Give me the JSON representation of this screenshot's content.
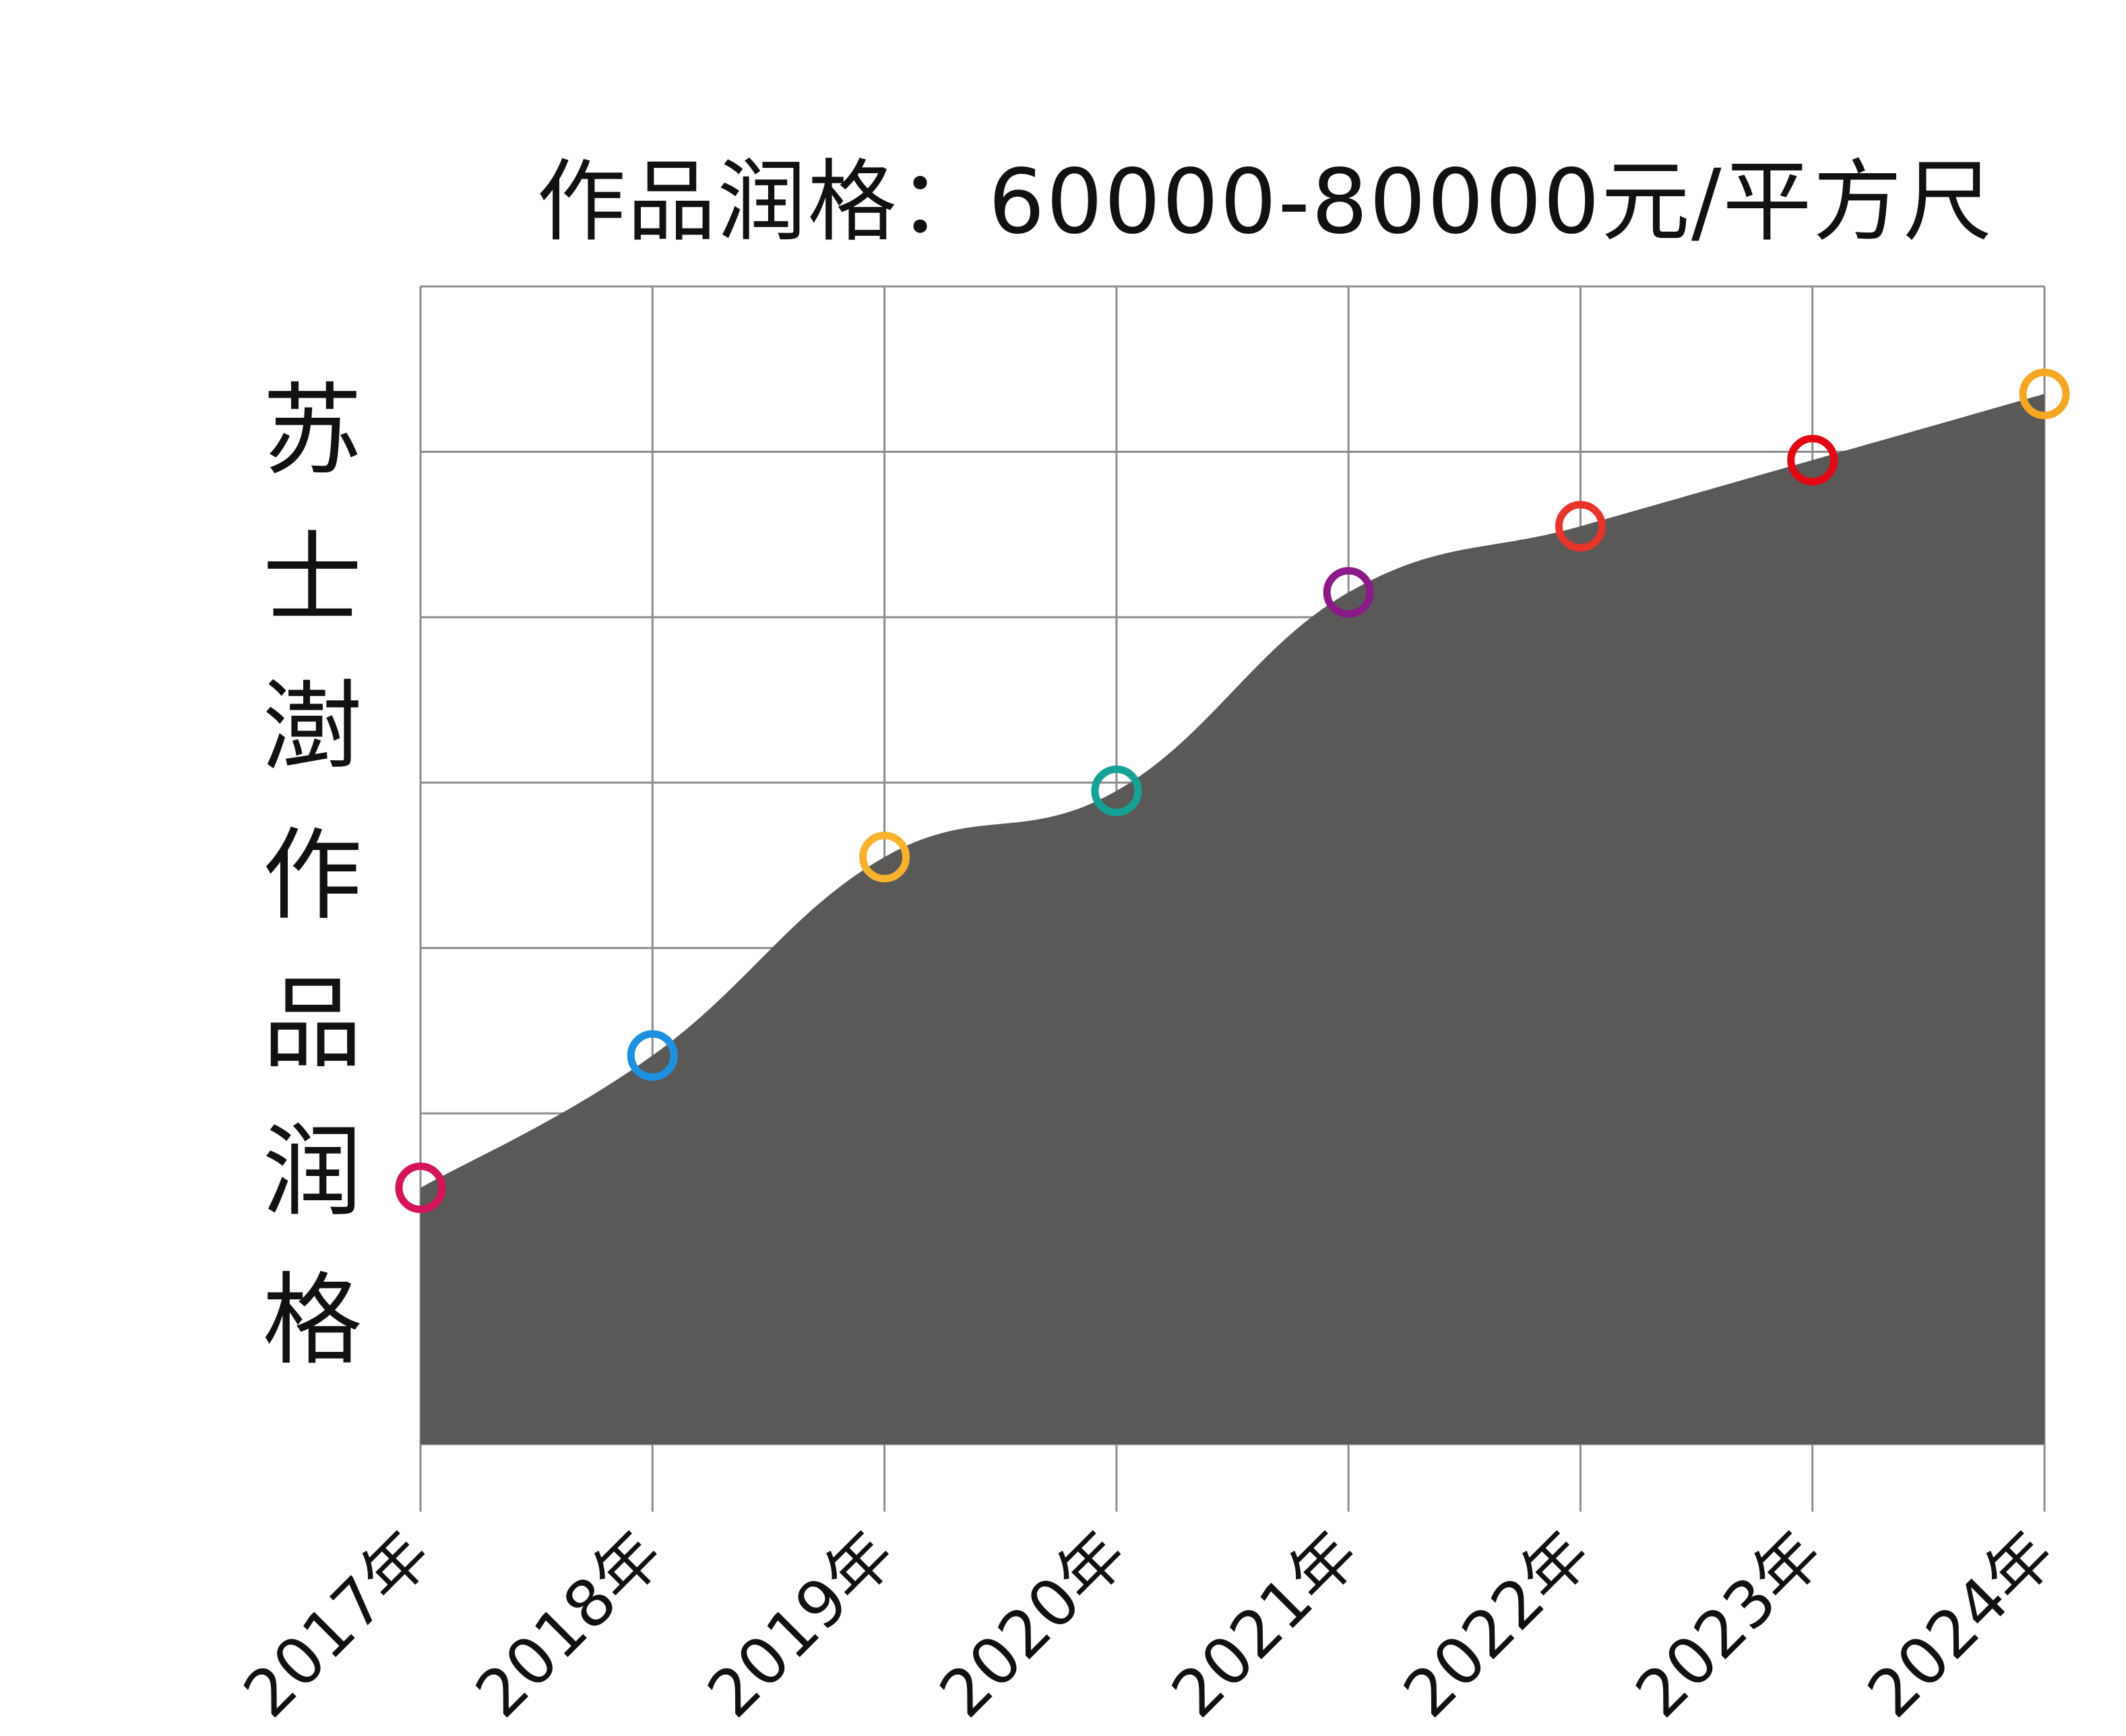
{
  "chart_data": {
    "type": "area",
    "title": "作品润格：60000-80000元/平方尺",
    "ylabel": "苏士澍作品润格",
    "xlabel": "",
    "categories": [
      "2017年",
      "2018年",
      "2019年",
      "2020年",
      "2021年",
      "2022年",
      "2023年",
      "2024年"
    ],
    "values": [
      1.55,
      2.35,
      3.55,
      3.95,
      5.15,
      5.55,
      5.95,
      6.35
    ],
    "ylim": [
      0,
      7
    ],
    "grid": true,
    "fill_color": "#5a5957",
    "marker_colors": [
      "#d4145a",
      "#1e90e0",
      "#f7b32b",
      "#16a195",
      "#8b1a89",
      "#e8342a",
      "#e30613",
      "#f5a623"
    ]
  }
}
